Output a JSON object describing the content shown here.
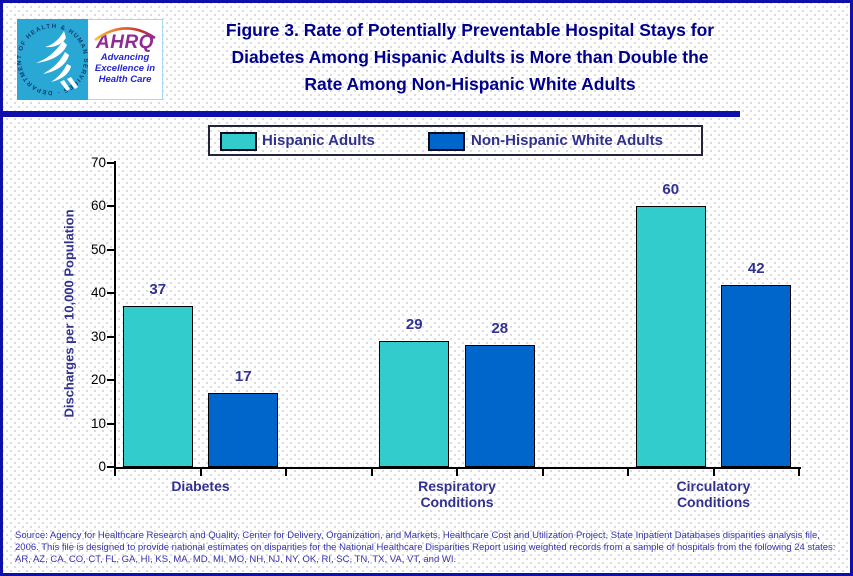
{
  "header": {
    "title_lines": [
      "Figure 3. Rate of Potentially Preventable Hospital Stays for",
      "Diabetes Among Hispanic Adults is More than Double the",
      "Rate Among Non-Hispanic White Adults"
    ],
    "logo": {
      "hhs_circular_text": "DEPARTMENT OF HEALTH & HUMAN SERVICES · USA",
      "ahrq_acronym": "AHRQ",
      "ahrq_tagline_lines": [
        "Advancing",
        "Excellence in",
        "Health Care"
      ]
    }
  },
  "chart_data": {
    "type": "bar",
    "title": "Figure 3. Rate of Potentially Preventable Hospital Stays for Diabetes Among Hispanic Adults is More than Double the Rate Among Non-Hispanic White Adults",
    "categories": [
      "Diabetes",
      "Respiratory Conditions",
      "Circulatory Conditions"
    ],
    "series": [
      {
        "name": "Hispanic Adults",
        "color": "#33cccc",
        "values": [
          37,
          29,
          60
        ]
      },
      {
        "name": "Non-Hispanic White Adults",
        "color": "#0066cc",
        "values": [
          17,
          28,
          42
        ]
      }
    ],
    "xlabel": "",
    "ylabel": "Discharges per 10,000 Population",
    "ylim": [
      0,
      70
    ],
    "yticks": [
      0,
      10,
      20,
      30,
      40,
      50,
      60,
      70
    ],
    "grid": false,
    "legend_position": "top",
    "data_labels": true
  },
  "colors": {
    "page_border": "#0f0fae",
    "title_text": "#00008b",
    "label_text": "#31318e",
    "hispanic_bar": "#33cccc",
    "white_bar": "#0066cc",
    "hhs_logo_background": "#29a8d6",
    "ahrq_purple": "#8f2b96"
  },
  "footer": {
    "source": "Source: Agency for Healthcare Research and Quality, Center for Delivery, Organization, and Markets, Healthcare Cost and Utilization Project, State Inpatient Databases disparities analysis file, 2006. This file is designed to provide national estimates on disparities for the National Healthcare Disparities Report using weighted records from a sample of hospitals from the following 24 states: AR, AZ, CA, CO, CT, FL, GA, HI, KS, MA, MD, MI, MO, NH, NJ, NY, OK, RI, SC, TN, TX, VA, VT, and WI."
  }
}
